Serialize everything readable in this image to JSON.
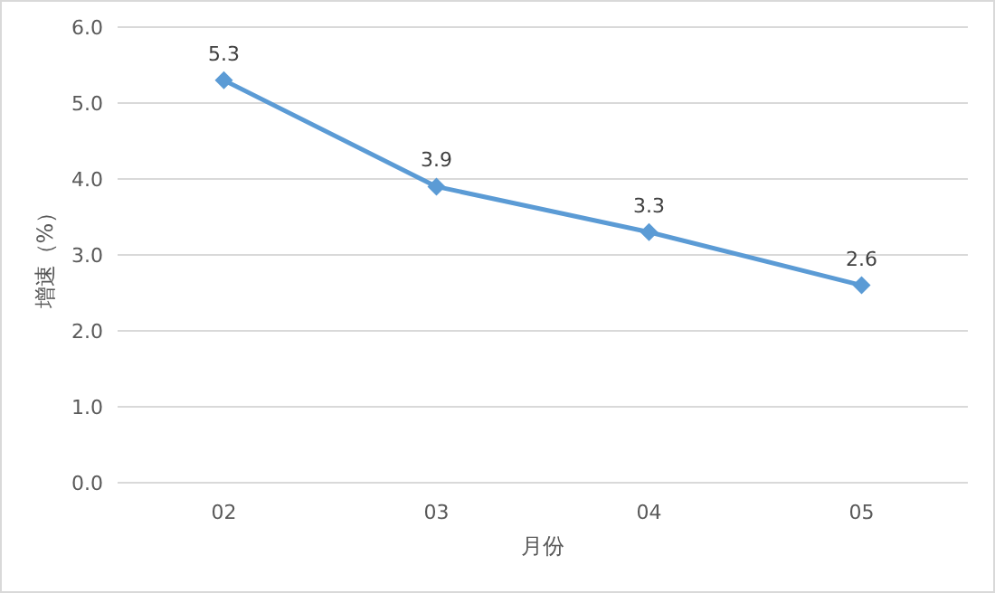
{
  "chart_data": {
    "type": "line",
    "xlabel": "月份",
    "ylabel": "增速（%）",
    "categories": [
      "02",
      "03",
      "04",
      "05"
    ],
    "series": [
      {
        "color": "#5b9bd5",
        "values": [
          5.3,
          3.9,
          3.3,
          2.6
        ]
      }
    ],
    "ylim": [
      0,
      6
    ],
    "yticks": [
      {
        "value": 0,
        "label": "0.0"
      },
      {
        "value": 1,
        "label": "1.0"
      },
      {
        "value": 2,
        "label": "2.0"
      },
      {
        "value": 3,
        "label": "3.0"
      },
      {
        "value": 4,
        "label": "4.0"
      },
      {
        "value": 5,
        "label": "5.0"
      },
      {
        "value": 6,
        "label": "6.0"
      }
    ],
    "grid": "y",
    "marker": "diamond",
    "line_style": "solid",
    "data_labels": true
  }
}
